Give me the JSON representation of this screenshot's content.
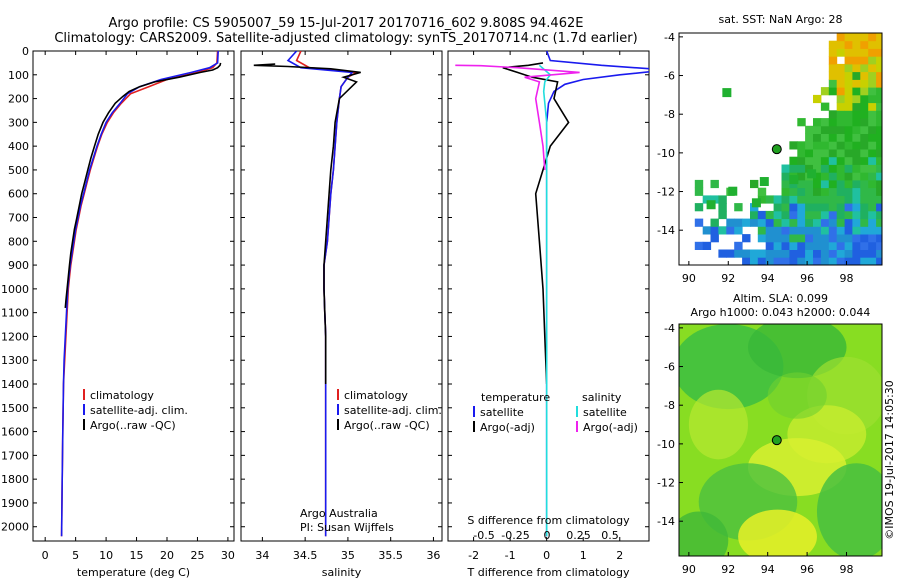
{
  "header": {
    "line1": "Argo profile: CS 5905007_59 15-Jul-2017 20170716_602 9.808S 94.462E",
    "line2": "Climatology: CARS2009. Satellite-adjusted climatology: synTS_20170714.nc (1.7d earlier)"
  },
  "side_label": "©IMOS 19-Jul-2017 14:05:30",
  "colors": {
    "clim": "#e02020",
    "sat": "#1a1aee",
    "argo": "#000000",
    "s_sat": "#22dddd",
    "s_argo": "#ee22ee"
  },
  "chart_data": [
    {
      "type": "line",
      "id": "temperature",
      "xlabel": "temperature (deg C)",
      "xlim": [
        -2,
        31
      ],
      "ylim": [
        0,
        2060
      ],
      "xticks": [
        0,
        5,
        10,
        15,
        20,
        25,
        30
      ],
      "yticks": [
        0,
        100,
        200,
        300,
        400,
        500,
        600,
        700,
        800,
        900,
        1000,
        1100,
        1200,
        1300,
        1400,
        1500,
        1600,
        1700,
        1800,
        1900,
        2000
      ],
      "legend": [
        "climatology",
        "satellite-adj. clim.",
        "Argo(..raw -QC)"
      ],
      "series": [
        {
          "name": "climatology",
          "color": "#e02020",
          "x": [
            28.3,
            28.2,
            27.5,
            25,
            20,
            17,
            14,
            12.5,
            11.2,
            10.2,
            9.3,
            8.6,
            8,
            7.4,
            6.9,
            6.4,
            5.9,
            5.5,
            5.1,
            4.8,
            4.5,
            4.2,
            4,
            3.8,
            3.6,
            3.4,
            3.2,
            3,
            2.9,
            2.8,
            2.7
          ],
          "y": [
            0,
            50,
            70,
            90,
            120,
            150,
            180,
            220,
            260,
            300,
            350,
            400,
            450,
            500,
            550,
            600,
            650,
            700,
            750,
            800,
            850,
            900,
            950,
            1000,
            1100,
            1200,
            1300,
            1400,
            1600,
            1800,
            2040
          ]
        },
        {
          "name": "satellite-adj. clim.",
          "color": "#1a1aee",
          "x": [
            28.4,
            28.3,
            27,
            24,
            19,
            15.5,
            13.5,
            12.3,
            11,
            10,
            9.2,
            8.5,
            7.9,
            7.3,
            6.8,
            6.3,
            5.8,
            5.4,
            5,
            4.7,
            4.4,
            4.1,
            3.9,
            3.7,
            3.5,
            3.3,
            3.1,
            3,
            2.9,
            2.8,
            2.7
          ],
          "y": [
            0,
            50,
            70,
            90,
            120,
            150,
            180,
            220,
            260,
            300,
            350,
            400,
            450,
            500,
            550,
            600,
            650,
            700,
            750,
            800,
            850,
            900,
            950,
            1000,
            1100,
            1200,
            1300,
            1400,
            1600,
            1800,
            2040
          ]
        },
        {
          "name": "Argo(..raw -QC)",
          "color": "#000000",
          "x": [
            28.8,
            28.7,
            28.3,
            27.5,
            25.5,
            22,
            18,
            15.5,
            13.8,
            12.8,
            11.5,
            10.4,
            9.5,
            8.7,
            8.1,
            7.5,
            7,
            6.5,
            6,
            5.6,
            5.2,
            4.8,
            4.5,
            4.2,
            4,
            3.8,
            3.6,
            3.4,
            3.3
          ],
          "y": [
            50,
            60,
            70,
            80,
            90,
            110,
            130,
            150,
            170,
            190,
            220,
            260,
            300,
            350,
            400,
            450,
            500,
            550,
            600,
            650,
            700,
            750,
            800,
            850,
            900,
            950,
            1000,
            1050,
            1080
          ]
        }
      ]
    },
    {
      "type": "line",
      "id": "salinity",
      "xlabel": "salinity",
      "xlim": [
        33.75,
        36.1
      ],
      "ylim": [
        0,
        2060
      ],
      "xticks": [
        34,
        34.5,
        35,
        35.5,
        36
      ],
      "legend": [
        "climatology",
        "satellite-adj. clim.",
        "Argo(..raw -QC)"
      ],
      "annotation": [
        "Argo Australia",
        "PI: Susan Wijffels"
      ],
      "series": [
        {
          "name": "climatology",
          "color": "#e02020",
          "x": [
            34.45,
            34.4,
            34.55,
            35.1,
            35.0,
            34.92,
            34.9,
            34.87,
            34.85,
            34.83,
            34.8,
            34.78,
            34.76,
            34.74,
            34.72,
            34.72,
            34.73,
            34.74,
            34.74,
            34.74,
            34.74,
            34.74
          ],
          "y": [
            0,
            40,
            70,
            90,
            110,
            150,
            200,
            300,
            400,
            500,
            600,
            700,
            800,
            850,
            900,
            1000,
            1100,
            1200,
            1400,
            1600,
            1800,
            2040
          ]
        },
        {
          "name": "satellite-adj. clim.",
          "color": "#1a1aee",
          "x": [
            34.4,
            34.3,
            34.45,
            35.05,
            35.0,
            34.92,
            34.9,
            34.87,
            34.85,
            34.83,
            34.8,
            34.78,
            34.76,
            34.74,
            34.72,
            34.72,
            34.73,
            34.74,
            34.74,
            34.74,
            34.74,
            34.74
          ],
          "y": [
            0,
            40,
            70,
            90,
            110,
            150,
            200,
            300,
            400,
            500,
            600,
            700,
            800,
            850,
            900,
            1000,
            1100,
            1200,
            1400,
            1600,
            1800,
            2040
          ]
        },
        {
          "name": "Argo(..raw -QC)",
          "color": "#000000",
          "x": [
            34.15,
            33.9,
            34.3,
            34.8,
            35.15,
            34.95,
            35.1,
            34.9,
            34.85,
            34.83,
            34.8,
            34.78,
            34.76,
            34.74,
            34.72,
            34.72,
            34.73,
            34.74,
            34.74,
            34.74
          ],
          "y": [
            55,
            60,
            65,
            75,
            90,
            110,
            130,
            200,
            300,
            400,
            500,
            600,
            700,
            800,
            900,
            1000,
            1100,
            1200,
            1300,
            1400
          ]
        }
      ]
    },
    {
      "type": "line",
      "id": "differences",
      "xlabel": "T difference from climatology",
      "xlabel2": "S difference from climatology",
      "xlim": [
        -2.7,
        2.8
      ],
      "ylim": [
        0,
        2060
      ],
      "xticks": [
        -2,
        -1,
        0,
        1,
        2
      ],
      "xticks2": [
        -0.5,
        -0.25,
        0,
        0.25,
        0.5
      ],
      "legend": {
        "title_left": "temperature",
        "title_right": "salinity",
        "left": [
          "satellite",
          "Argo(-adj)"
        ],
        "right": [
          "satellite",
          "Argo(-adj)"
        ]
      },
      "series": [
        {
          "name": "satellite",
          "color": "#1a1aee",
          "x": [
            0,
            0.1,
            1.5,
            3.3,
            2.0,
            1.0,
            0.5,
            0.2,
            0.05,
            0,
            0,
            0,
            0,
            0
          ],
          "y": [
            0,
            40,
            60,
            80,
            100,
            120,
            140,
            170,
            220,
            300,
            500,
            800,
            1200,
            2040
          ]
        },
        {
          "name": "Argo(-adj)",
          "color": "#000000",
          "x": [
            -0.1,
            -0.5,
            -1.2,
            -0.8,
            -0.4,
            0.3,
            0.2,
            0.6,
            0.1,
            -0.3,
            -0.2,
            -0.1,
            -0.05,
            0
          ],
          "y": [
            50,
            60,
            70,
            90,
            110,
            130,
            200,
            300,
            400,
            600,
            800,
            1000,
            1200,
            1400
          ]
        },
        {
          "name": "salinity satellite",
          "color": "#22dddd",
          "x": [
            -0.2,
            -0.05,
            0.1,
            -0.05,
            -0.08,
            0,
            0,
            0,
            0,
            0
          ],
          "y": [
            60,
            80,
            100,
            130,
            170,
            300,
            600,
            1000,
            1500,
            2040
          ]
        },
        {
          "name": "salinity Argo(-adj)",
          "color": "#ee22ee",
          "x": [
            -2.5,
            -1.8,
            -0.8,
            0.9,
            -0.6,
            -0.2,
            -0.3,
            -0.2,
            -0.1,
            -0.05
          ],
          "y": [
            60,
            62,
            70,
            90,
            110,
            130,
            200,
            300,
            400,
            500
          ]
        }
      ]
    },
    {
      "type": "heatmap",
      "id": "sst-map",
      "title": "sat. SST: NaN Argo: 28",
      "xlim": [
        89.5,
        99.8
      ],
      "ylim": [
        -15.8,
        -3.8
      ],
      "xticks": [
        90,
        92,
        94,
        96,
        98
      ],
      "yticks": [
        -4,
        -6,
        -8,
        -10,
        -12,
        -14
      ],
      "marker": {
        "lon": 94.462,
        "lat": -9.808
      }
    },
    {
      "type": "heatmap",
      "id": "sla-map",
      "title": "Altim. SLA: 0.099",
      "subtitle": "Argo h1000: 0.043 h2000: 0.044",
      "xlim": [
        89.5,
        99.8
      ],
      "ylim": [
        -15.8,
        -3.8
      ],
      "xticks": [
        90,
        92,
        94,
        96,
        98
      ],
      "yticks": [
        -4,
        -6,
        -8,
        -10,
        -12,
        -14
      ],
      "marker": {
        "lon": 94.462,
        "lat": -9.808
      }
    }
  ]
}
